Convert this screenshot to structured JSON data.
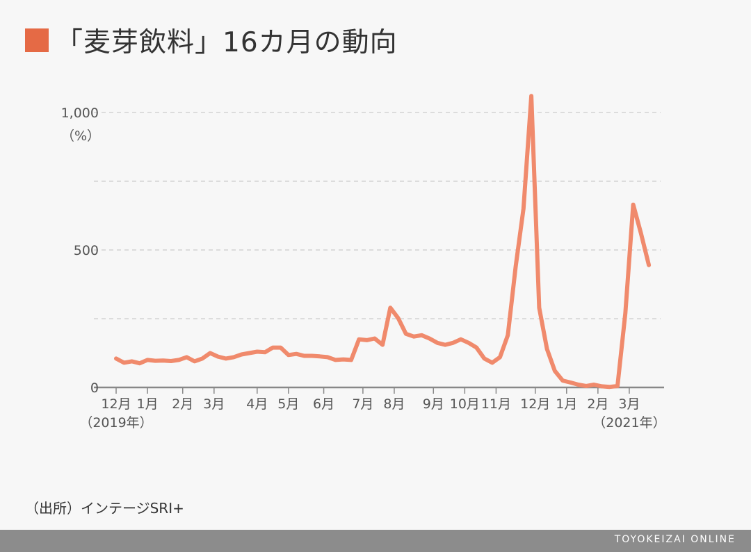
{
  "title": "「麦芽飲料」16カ月の動向",
  "colors": {
    "title_square": "#e56a45",
    "line": "#f08a6c",
    "axis": "#888888",
    "grid": "#cccccc",
    "footer": "#8c8c8c"
  },
  "source_note": "（出所）インテージSRI+",
  "footer_brand": "TOYOKEIZAI ONLINE",
  "chart_data": {
    "type": "line",
    "title": "「麦芽飲料」16カ月の動向",
    "y_unit_label": "（%）",
    "ylim": [
      0,
      1000
    ],
    "y_ticks": [
      {
        "value": 0,
        "label": "0"
      },
      {
        "value": 500,
        "label": "500"
      },
      {
        "value": 1000,
        "label": "1,000"
      }
    ],
    "grid": true,
    "grid_values": [
      250,
      500,
      750,
      1000
    ],
    "x_axis_labels": [
      {
        "x": 0,
        "label": "12月"
      },
      {
        "x": 4,
        "label": "1月"
      },
      {
        "x": 8.5,
        "label": "2月"
      },
      {
        "x": 12.5,
        "label": "3月"
      },
      {
        "x": 18,
        "label": "4月"
      },
      {
        "x": 22,
        "label": "5月"
      },
      {
        "x": 26.5,
        "label": "6月"
      },
      {
        "x": 31.5,
        "label": "7月"
      },
      {
        "x": 35.5,
        "label": "8月"
      },
      {
        "x": 40.5,
        "label": "9月"
      },
      {
        "x": 44.5,
        "label": "10月"
      },
      {
        "x": 48.5,
        "label": "11月"
      },
      {
        "x": 53.5,
        "label": "12月"
      },
      {
        "x": 57.5,
        "label": "1月"
      },
      {
        "x": 61.5,
        "label": "2月"
      },
      {
        "x": 65.5,
        "label": "3月"
      }
    ],
    "year_labels": [
      {
        "x": 0,
        "label": "（2019年）"
      },
      {
        "x": 65.5,
        "label": "（2021年）"
      }
    ],
    "x_range": [
      0,
      69.5
    ],
    "series": [
      {
        "values": [
          105,
          90,
          95,
          88,
          100,
          97,
          98,
          96,
          100,
          110,
          95,
          105,
          125,
          112,
          105,
          110,
          120,
          125,
          130,
          128,
          145,
          145,
          118,
          122,
          115,
          115,
          113,
          110,
          100,
          102,
          100,
          175,
          172,
          178,
          155,
          290,
          252,
          195,
          185,
          190,
          178,
          162,
          155,
          162,
          175,
          162,
          145,
          105,
          90,
          110,
          190,
          440,
          650,
          1060,
          290,
          140,
          60,
          25,
          18,
          10,
          5,
          10,
          4,
          2,
          5,
          270,
          665,
          560,
          445
        ]
      }
    ]
  }
}
